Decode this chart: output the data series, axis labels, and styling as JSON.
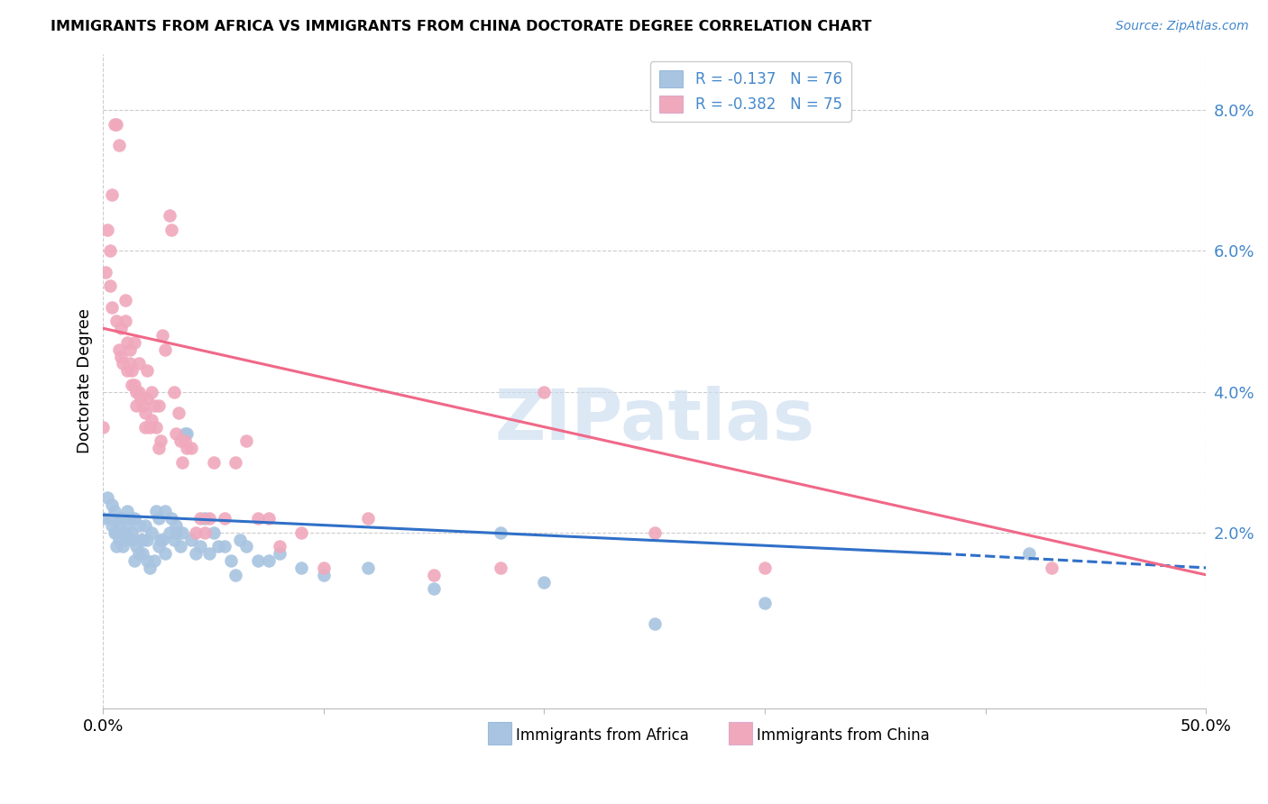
{
  "title": "IMMIGRANTS FROM AFRICA VS IMMIGRANTS FROM CHINA DOCTORATE DEGREE CORRELATION CHART",
  "source": "Source: ZipAtlas.com",
  "ylabel": "Doctorate Degree",
  "yticks": [
    0.0,
    0.02,
    0.04,
    0.06,
    0.08
  ],
  "ytick_labels": [
    "",
    "2.0%",
    "4.0%",
    "6.0%",
    "8.0%"
  ],
  "xtick_labels": [
    "0.0%",
    "",
    "",
    "",
    "",
    "50.0%"
  ],
  "xlim": [
    0.0,
    0.5
  ],
  "ylim": [
    -0.005,
    0.088
  ],
  "watermark": "ZIPatlas",
  "legend_africa_r": "R = -0.137",
  "legend_africa_n": "N = 76",
  "legend_china_r": "R = -0.382",
  "legend_china_n": "N = 75",
  "africa_color": "#a8c4e0",
  "china_color": "#f0a8bc",
  "africa_line_color": "#3070c8",
  "china_line_color": "#f06888",
  "africa_line_solid": [
    [
      0.0,
      0.0225
    ],
    [
      0.38,
      0.017
    ]
  ],
  "africa_line_dash": [
    [
      0.38,
      0.017
    ],
    [
      0.5,
      0.015
    ]
  ],
  "china_line": [
    [
      0.0,
      0.049
    ],
    [
      0.5,
      0.014
    ]
  ],
  "africa_scatter": [
    [
      0.0,
      0.022
    ],
    [
      0.002,
      0.025
    ],
    [
      0.003,
      0.022
    ],
    [
      0.004,
      0.024
    ],
    [
      0.004,
      0.021
    ],
    [
      0.005,
      0.02
    ],
    [
      0.005,
      0.023
    ],
    [
      0.006,
      0.018
    ],
    [
      0.006,
      0.02
    ],
    [
      0.007,
      0.021
    ],
    [
      0.007,
      0.019
    ],
    [
      0.008,
      0.02
    ],
    [
      0.008,
      0.022
    ],
    [
      0.009,
      0.018
    ],
    [
      0.009,
      0.022
    ],
    [
      0.01,
      0.02
    ],
    [
      0.01,
      0.019
    ],
    [
      0.011,
      0.023
    ],
    [
      0.011,
      0.021
    ],
    [
      0.012,
      0.022
    ],
    [
      0.013,
      0.019
    ],
    [
      0.013,
      0.02
    ],
    [
      0.014,
      0.016
    ],
    [
      0.014,
      0.022
    ],
    [
      0.015,
      0.018
    ],
    [
      0.016,
      0.017
    ],
    [
      0.016,
      0.021
    ],
    [
      0.017,
      0.019
    ],
    [
      0.018,
      0.019
    ],
    [
      0.018,
      0.017
    ],
    [
      0.019,
      0.021
    ],
    [
      0.02,
      0.016
    ],
    [
      0.02,
      0.019
    ],
    [
      0.021,
      0.015
    ],
    [
      0.022,
      0.02
    ],
    [
      0.023,
      0.016
    ],
    [
      0.024,
      0.023
    ],
    [
      0.025,
      0.018
    ],
    [
      0.025,
      0.022
    ],
    [
      0.026,
      0.019
    ],
    [
      0.027,
      0.019
    ],
    [
      0.028,
      0.017
    ],
    [
      0.028,
      0.023
    ],
    [
      0.03,
      0.02
    ],
    [
      0.031,
      0.022
    ],
    [
      0.032,
      0.019
    ],
    [
      0.033,
      0.021
    ],
    [
      0.033,
      0.02
    ],
    [
      0.035,
      0.018
    ],
    [
      0.036,
      0.02
    ],
    [
      0.037,
      0.034
    ],
    [
      0.038,
      0.034
    ],
    [
      0.04,
      0.019
    ],
    [
      0.042,
      0.017
    ],
    [
      0.044,
      0.018
    ],
    [
      0.046,
      0.022
    ],
    [
      0.048,
      0.017
    ],
    [
      0.05,
      0.02
    ],
    [
      0.052,
      0.018
    ],
    [
      0.055,
      0.018
    ],
    [
      0.058,
      0.016
    ],
    [
      0.06,
      0.014
    ],
    [
      0.062,
      0.019
    ],
    [
      0.065,
      0.018
    ],
    [
      0.07,
      0.016
    ],
    [
      0.075,
      0.016
    ],
    [
      0.08,
      0.017
    ],
    [
      0.09,
      0.015
    ],
    [
      0.1,
      0.014
    ],
    [
      0.12,
      0.015
    ],
    [
      0.15,
      0.012
    ],
    [
      0.18,
      0.02
    ],
    [
      0.2,
      0.013
    ],
    [
      0.25,
      0.007
    ],
    [
      0.3,
      0.01
    ],
    [
      0.42,
      0.017
    ]
  ],
  "china_scatter": [
    [
      0.0,
      0.035
    ],
    [
      0.001,
      0.057
    ],
    [
      0.002,
      0.063
    ],
    [
      0.003,
      0.06
    ],
    [
      0.003,
      0.055
    ],
    [
      0.004,
      0.068
    ],
    [
      0.004,
      0.052
    ],
    [
      0.005,
      0.078
    ],
    [
      0.006,
      0.078
    ],
    [
      0.006,
      0.05
    ],
    [
      0.007,
      0.075
    ],
    [
      0.007,
      0.046
    ],
    [
      0.008,
      0.049
    ],
    [
      0.008,
      0.045
    ],
    [
      0.009,
      0.044
    ],
    [
      0.01,
      0.05
    ],
    [
      0.01,
      0.053
    ],
    [
      0.011,
      0.047
    ],
    [
      0.011,
      0.043
    ],
    [
      0.012,
      0.046
    ],
    [
      0.012,
      0.044
    ],
    [
      0.013,
      0.043
    ],
    [
      0.013,
      0.041
    ],
    [
      0.014,
      0.047
    ],
    [
      0.014,
      0.041
    ],
    [
      0.015,
      0.04
    ],
    [
      0.015,
      0.038
    ],
    [
      0.016,
      0.044
    ],
    [
      0.016,
      0.04
    ],
    [
      0.017,
      0.039
    ],
    [
      0.018,
      0.038
    ],
    [
      0.019,
      0.035
    ],
    [
      0.019,
      0.037
    ],
    [
      0.02,
      0.043
    ],
    [
      0.02,
      0.039
    ],
    [
      0.021,
      0.035
    ],
    [
      0.022,
      0.04
    ],
    [
      0.022,
      0.036
    ],
    [
      0.023,
      0.038
    ],
    [
      0.024,
      0.035
    ],
    [
      0.025,
      0.038
    ],
    [
      0.025,
      0.032
    ],
    [
      0.026,
      0.033
    ],
    [
      0.027,
      0.048
    ],
    [
      0.028,
      0.046
    ],
    [
      0.03,
      0.065
    ],
    [
      0.031,
      0.063
    ],
    [
      0.032,
      0.04
    ],
    [
      0.033,
      0.034
    ],
    [
      0.034,
      0.037
    ],
    [
      0.035,
      0.033
    ],
    [
      0.036,
      0.03
    ],
    [
      0.037,
      0.033
    ],
    [
      0.038,
      0.032
    ],
    [
      0.04,
      0.032
    ],
    [
      0.042,
      0.02
    ],
    [
      0.044,
      0.022
    ],
    [
      0.046,
      0.02
    ],
    [
      0.048,
      0.022
    ],
    [
      0.05,
      0.03
    ],
    [
      0.055,
      0.022
    ],
    [
      0.06,
      0.03
    ],
    [
      0.065,
      0.033
    ],
    [
      0.07,
      0.022
    ],
    [
      0.075,
      0.022
    ],
    [
      0.08,
      0.018
    ],
    [
      0.09,
      0.02
    ],
    [
      0.1,
      0.015
    ],
    [
      0.12,
      0.022
    ],
    [
      0.15,
      0.014
    ],
    [
      0.18,
      0.015
    ],
    [
      0.2,
      0.04
    ],
    [
      0.25,
      0.02
    ],
    [
      0.3,
      0.015
    ],
    [
      0.43,
      0.015
    ]
  ]
}
